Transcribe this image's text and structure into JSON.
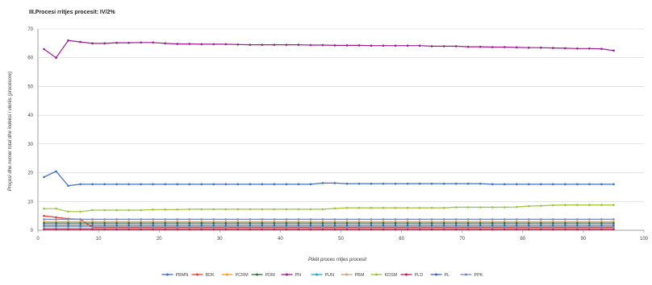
{
  "chart_data": {
    "type": "line",
    "title": "III.Procesi rritjes procesit: IV/2%",
    "xlabel": "Pikët proces rritjes procesit",
    "ylabel": "Proçesi dhe numer total dhe indeksi i vlerës (procesore)",
    "xlim": [
      0,
      100
    ],
    "ylim": [
      0,
      70
    ],
    "xticks": [
      "0",
      "10",
      "20",
      "30",
      "40",
      "50",
      "60",
      "70",
      "80",
      "90",
      "100"
    ],
    "yticks": [
      "0",
      "10",
      "20",
      "30",
      "40",
      "50",
      "60",
      "70"
    ],
    "grid": "horizontal",
    "legend_position": "bottom",
    "x": [
      1,
      3,
      5,
      7,
      9,
      11,
      13,
      15,
      17,
      19,
      21,
      23,
      25,
      27,
      29,
      31,
      33,
      35,
      37,
      39,
      41,
      43,
      45,
      47,
      49,
      51,
      53,
      55,
      57,
      59,
      61,
      63,
      65,
      67,
      69,
      71,
      73,
      75,
      77,
      79,
      81,
      83,
      85,
      87,
      89,
      91,
      93,
      95
    ],
    "series": [
      {
        "name": "PBMN",
        "color": "#3f6fc4",
        "values": [
          18.5,
          20.5,
          15.5,
          16,
          16,
          16,
          16,
          16,
          16,
          16,
          16,
          16,
          16,
          16,
          16,
          16,
          16,
          16,
          16,
          16,
          16,
          16,
          16,
          16.4,
          16.4,
          16.2,
          16.2,
          16.2,
          16.2,
          16.2,
          16.2,
          16.2,
          16.2,
          16.2,
          16.2,
          16.2,
          16.2,
          16,
          16,
          16,
          16,
          16,
          16,
          16,
          16,
          16,
          16,
          16
        ]
      },
      {
        "name": "BDK",
        "color": "#e0402c",
        "values": [
          5,
          4.5,
          4,
          3.8,
          1,
          1,
          1,
          1,
          1,
          1,
          1,
          1,
          1,
          1,
          1,
          1,
          1,
          1,
          1,
          1,
          1,
          1,
          1,
          1,
          1,
          1,
          1,
          1,
          1,
          1,
          1,
          1,
          1,
          1,
          1,
          1,
          1,
          1,
          1,
          1,
          1,
          1,
          1,
          1,
          1,
          1,
          1,
          1
        ]
      },
      {
        "name": "PCRM",
        "color": "#f0a020",
        "values": [
          3,
          3,
          3,
          3,
          3,
          3,
          3,
          3,
          3,
          3,
          3,
          3,
          3,
          3,
          3,
          3,
          3,
          3,
          3,
          3,
          3,
          3,
          3,
          3,
          3,
          3,
          3,
          3,
          3,
          3,
          3,
          3,
          3,
          3,
          3,
          3,
          3,
          3,
          3,
          3,
          3,
          3,
          3,
          3,
          3,
          3,
          3,
          3
        ]
      },
      {
        "name": "PDM",
        "color": "#2d6b3a",
        "values": [
          2.5,
          2.5,
          2.5,
          2.5,
          2.5,
          2.5,
          2.5,
          2.5,
          2.5,
          2.5,
          2.5,
          2.5,
          2.5,
          2.5,
          2.5,
          2.5,
          2.5,
          2.5,
          2.5,
          2.5,
          2.5,
          2.5,
          2.5,
          2.5,
          2.5,
          2.5,
          2.5,
          2.5,
          2.5,
          2.5,
          2.5,
          2.5,
          2.5,
          2.5,
          2.5,
          2.5,
          2.5,
          2.5,
          2.5,
          2.5,
          2.5,
          2.5,
          2.5,
          2.5,
          2.5,
          2.5,
          2.5,
          2.5
        ]
      },
      {
        "name": "PN",
        "color": "#9b1a8f",
        "values": [
          63,
          60,
          66,
          65.5,
          65,
          65,
          65.2,
          65.2,
          65.3,
          65.3,
          65,
          64.8,
          64.8,
          64.7,
          64.7,
          64.7,
          64.6,
          64.5,
          64.5,
          64.5,
          64.5,
          64.5,
          64.4,
          64.4,
          64.3,
          64.3,
          64.3,
          64.2,
          64.2,
          64.2,
          64.2,
          64.2,
          64,
          64,
          64,
          63.8,
          63.8,
          63.7,
          63.7,
          63.6,
          63.5,
          63.5,
          63.4,
          63.3,
          63.2,
          63.2,
          63.1,
          62.5
        ]
      },
      {
        "name": "PUN",
        "color": "#23a7c9",
        "values": [
          1.2,
          1.2,
          1.2,
          1.2,
          1.2,
          1.2,
          1.2,
          1.2,
          1.2,
          1.2,
          1.2,
          1.2,
          1.2,
          1.2,
          1.2,
          1.2,
          1.2,
          1.2,
          1.2,
          1.2,
          1.2,
          1.2,
          1.2,
          1.2,
          1.2,
          1.2,
          1.2,
          1.2,
          1.2,
          1.2,
          1.2,
          1.2,
          1.2,
          1.2,
          1.2,
          1.2,
          1.2,
          1.2,
          1.2,
          1.2,
          1.2,
          1.2,
          1.2,
          1.2,
          1.2,
          1.2,
          1.2,
          1.2
        ]
      },
      {
        "name": "PBM",
        "color": "#c9a08a",
        "values": [
          0.6,
          0.6,
          0.6,
          0.6,
          0.6,
          0.6,
          0.6,
          0.6,
          0.6,
          0.6,
          0.6,
          0.6,
          0.6,
          0.6,
          0.6,
          0.6,
          0.6,
          0.6,
          0.6,
          0.6,
          0.6,
          0.6,
          0.6,
          0.6,
          0.6,
          0.6,
          0.6,
          0.6,
          0.6,
          0.6,
          0.6,
          0.6,
          0.6,
          0.6,
          0.6,
          0.6,
          0.6,
          0.6,
          0.6,
          0.6,
          0.6,
          0.6,
          0.6,
          0.6,
          0.6,
          0.6,
          0.6,
          0.6
        ]
      },
      {
        "name": "KDSM",
        "color": "#9cc43a",
        "values": [
          7.5,
          7.5,
          6.5,
          6.5,
          7,
          7,
          7,
          7,
          7,
          7.2,
          7.2,
          7.2,
          7.3,
          7.3,
          7.3,
          7.3,
          7.3,
          7.3,
          7.3,
          7.3,
          7.3,
          7.3,
          7.3,
          7.3,
          7.6,
          7.8,
          7.8,
          7.8,
          7.8,
          7.8,
          7.8,
          7.8,
          7.8,
          7.8,
          8,
          8,
          8,
          8,
          8,
          8.1,
          8.4,
          8.5,
          8.7,
          8.8,
          8.8,
          8.8,
          8.8,
          8.8
        ]
      },
      {
        "name": "PLD",
        "color": "#c01c5a",
        "values": [
          0.3,
          0.3,
          0.3,
          0.3,
          0.3,
          0.3,
          0.3,
          0.3,
          0.3,
          0.3,
          0.3,
          0.3,
          0.3,
          0.3,
          0.3,
          0.3,
          0.3,
          0.3,
          0.3,
          0.3,
          0.3,
          0.3,
          0.3,
          0.3,
          0.3,
          0.3,
          0.3,
          0.3,
          0.3,
          0.3,
          0.3,
          0.3,
          0.3,
          0.3,
          0.3,
          0.3,
          0.3,
          0.3,
          0.3,
          0.3,
          0.3,
          0.3,
          0.3,
          0.3,
          0.3,
          0.3,
          0.3,
          0.3
        ]
      },
      {
        "name": "PL",
        "color": "#3a64b5",
        "values": [
          1.8,
          1.8,
          1.8,
          1.8,
          1.8,
          1.8,
          1.8,
          1.8,
          1.8,
          1.8,
          1.8,
          1.8,
          1.8,
          1.8,
          1.8,
          1.8,
          1.8,
          1.8,
          1.8,
          1.8,
          1.8,
          1.8,
          1.8,
          1.8,
          1.8,
          1.8,
          1.8,
          1.8,
          1.8,
          1.8,
          1.8,
          1.8,
          1.8,
          1.8,
          1.8,
          1.8,
          1.8,
          1.8,
          1.8,
          1.8,
          1.8,
          1.8,
          1.8,
          1.8,
          1.8,
          1.8,
          1.8,
          1.8
        ]
      },
      {
        "name": "PPK",
        "color": "#7a86c0",
        "values": [
          3.8,
          3.8,
          3.8,
          3.8,
          3.8,
          3.8,
          3.8,
          3.8,
          3.8,
          3.8,
          3.8,
          3.8,
          3.8,
          3.8,
          3.8,
          3.8,
          3.8,
          3.8,
          3.8,
          3.8,
          3.8,
          3.8,
          3.8,
          3.8,
          3.8,
          3.8,
          3.8,
          3.8,
          3.8,
          3.8,
          3.8,
          3.8,
          3.8,
          3.8,
          3.8,
          3.8,
          3.8,
          3.8,
          3.8,
          3.8,
          3.8,
          3.8,
          3.8,
          3.8,
          3.8,
          3.8,
          3.8,
          3.8
        ]
      }
    ]
  }
}
